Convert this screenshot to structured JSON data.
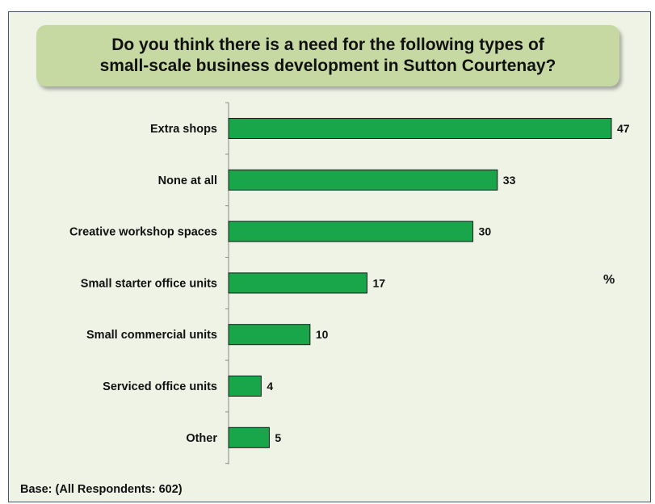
{
  "chart_data": {
    "type": "bar",
    "orientation": "horizontal",
    "title_lines": [
      "Do you think there is a need for the following types of",
      "small-scale business development in Sutton Courtenay?"
    ],
    "categories": [
      "Extra shops",
      "None at all",
      "Creative workshop spaces",
      "Small starter office units",
      "Small commercial units",
      "Serviced office units",
      "Other"
    ],
    "values": [
      47,
      33,
      30,
      17,
      10,
      4,
      5
    ],
    "value_labels": [
      "47",
      "33",
      "30",
      "17",
      "10",
      "4",
      "5"
    ],
    "unit_label": "%",
    "base_note": "Base: (All Respondents: 602)",
    "xlim": [
      0,
      47
    ],
    "bar_color": "#19a64a",
    "bar_edge_color": "#1a1a1a",
    "grid": false,
    "legend": "none"
  }
}
